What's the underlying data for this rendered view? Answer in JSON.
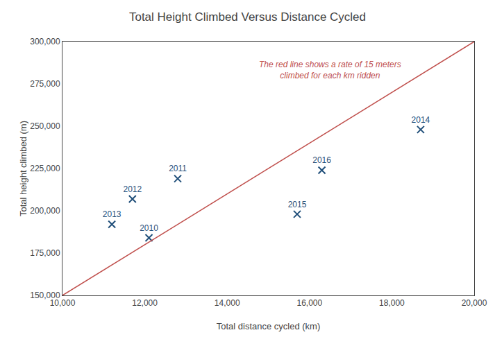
{
  "chart_data": {
    "type": "scatter",
    "title": "Total Height Climbed Versus Distance Cycled",
    "xlabel": "Total distance cycled (km)",
    "ylabel": "Total height climbed (m)",
    "series": [
      {
        "type": "scatter",
        "color": "#1F4E79",
        "marker": "x",
        "x": [
          12100,
          12800,
          11700,
          11200,
          18700,
          15700,
          16300
        ],
        "values": [
          184000,
          219000,
          207000,
          192000,
          248000,
          198000,
          224000
        ],
        "point_labels": [
          "2010",
          "2011",
          "2012",
          "2013",
          "2014",
          "2015",
          "2016"
        ]
      },
      {
        "type": "line",
        "color": "#C0504D",
        "line_style": "solid",
        "x": [
          10000,
          20000
        ],
        "values": [
          150000,
          300000
        ]
      }
    ],
    "annotations": [
      {
        "text": "The red line shows a rate of 15 meters\nclimbed for each km ridden",
        "x": 16500,
        "y": 283000,
        "color": "#C0504D"
      }
    ],
    "xlim": [
      10000,
      20000
    ],
    "ylim": [
      150000,
      300000
    ],
    "xticks": [
      {
        "value": 10000,
        "label": "10,000"
      },
      {
        "value": 12000,
        "label": "12,000"
      },
      {
        "value": 14000,
        "label": "14,000"
      },
      {
        "value": 16000,
        "label": "16,000"
      },
      {
        "value": 18000,
        "label": "18,000"
      },
      {
        "value": 20000,
        "label": "20,000"
      }
    ],
    "yticks": [
      {
        "value": 150000,
        "label": "150,000"
      },
      {
        "value": 175000,
        "label": "175,000"
      },
      {
        "value": 200000,
        "label": "200,000"
      },
      {
        "value": 225000,
        "label": "225,000"
      },
      {
        "value": 250000,
        "label": "250,000"
      },
      {
        "value": 275000,
        "label": "275,000"
      },
      {
        "value": 300000,
        "label": "300,000"
      }
    ],
    "grid": false
  }
}
